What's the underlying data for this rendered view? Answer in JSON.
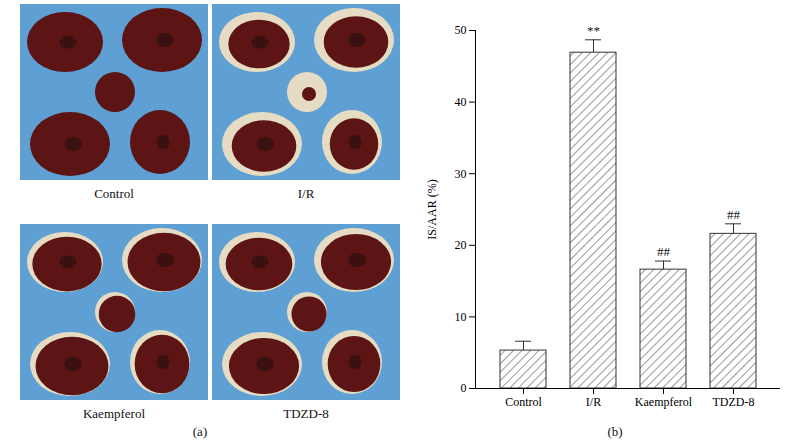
{
  "panel_a": {
    "caption": "(a)",
    "photos": [
      "Control",
      "I/R",
      "Kaempferol",
      "TDZD-8"
    ]
  },
  "chart_data": {
    "type": "bar",
    "caption": "(b)",
    "categories": [
      "Control",
      "I/R",
      "Kaempferol",
      "TDZD-8"
    ],
    "values": [
      5.3,
      46.9,
      16.6,
      21.6
    ],
    "errors": [
      1.3,
      1.8,
      1.2,
      1.4
    ],
    "annotations": [
      "",
      "**",
      "##",
      "##"
    ],
    "y_label": "IS/AAR (%)",
    "ylim": [
      0,
      50
    ],
    "yticks": [
      0,
      10,
      20,
      30,
      40,
      50
    ],
    "color": "#333333",
    "grid": false
  }
}
